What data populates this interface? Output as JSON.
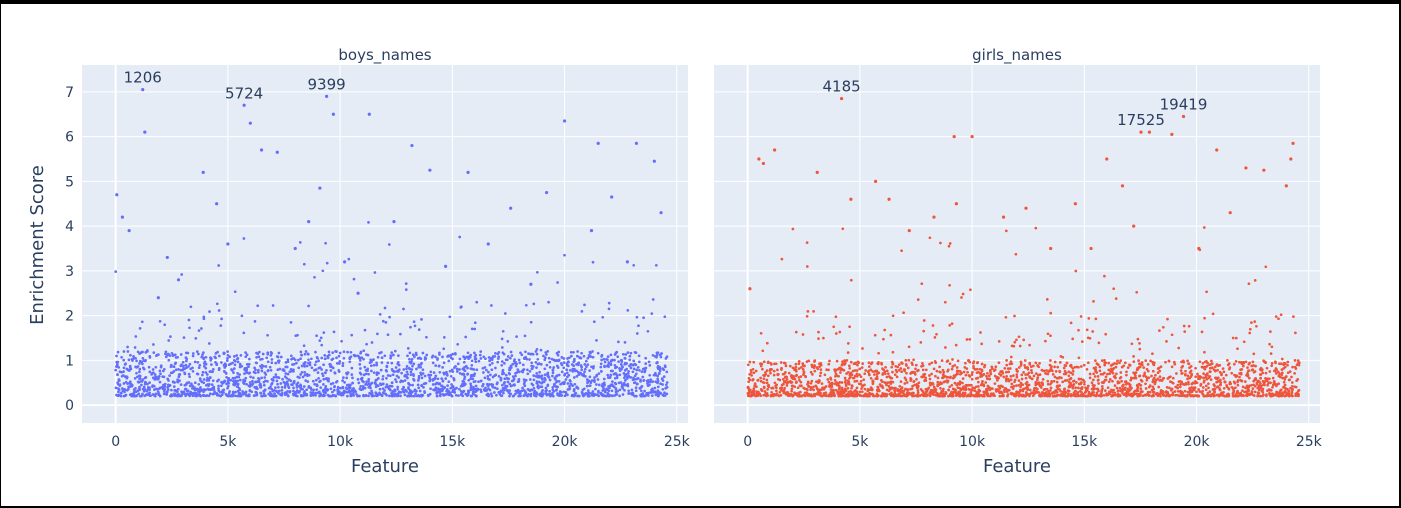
{
  "chart_data": [
    {
      "type": "scatter",
      "title": "boys_names",
      "xlabel": "Feature",
      "ylabel": "Enrichment Score",
      "xlim": [
        -1500,
        25500
      ],
      "ylim": [
        -0.4,
        7.6
      ],
      "xticks": [
        0,
        5000,
        10000,
        15000,
        20000,
        25000
      ],
      "xtick_labels": [
        "0",
        "5k",
        "10k",
        "15k",
        "20k",
        "25k"
      ],
      "yticks": [
        0,
        1,
        2,
        3,
        4,
        5,
        6,
        7
      ],
      "ytick_labels": [
        "0",
        "1",
        "2",
        "3",
        "4",
        "5",
        "6",
        "7"
      ],
      "color": "#636efa",
      "n_features": 24576,
      "series": [
        {
          "x": [
            50,
            300,
            600,
            1206,
            1300,
            1900,
            2300,
            2800,
            3900,
            4500,
            5000,
            5724,
            6000,
            6500,
            7200,
            8000,
            8600,
            9100,
            9399,
            9700,
            10200,
            10800,
            11300,
            12400,
            13200,
            14000,
            14700,
            15700,
            16600,
            17600,
            18500,
            19200,
            20000,
            21200,
            21500,
            22100,
            22800,
            23200,
            24000,
            24300
          ],
          "y": [
            4.7,
            4.2,
            3.9,
            7.05,
            6.1,
            2.4,
            3.3,
            2.8,
            5.2,
            4.5,
            3.6,
            6.7,
            6.3,
            5.7,
            5.65,
            3.5,
            4.1,
            4.85,
            6.9,
            6.5,
            3.2,
            2.5,
            6.5,
            4.1,
            5.8,
            5.25,
            3.1,
            5.2,
            3.6,
            4.4,
            2.7,
            4.75,
            6.35,
            3.9,
            5.85,
            4.65,
            3.2,
            5.85,
            5.45,
            4.3
          ]
        }
      ],
      "annotations": [
        {
          "x": 1206,
          "y": 7.05,
          "text": "1206"
        },
        {
          "x": 5724,
          "y": 6.7,
          "text": "5724"
        },
        {
          "x": 9399,
          "y": 6.9,
          "text": "9399"
        }
      ]
    },
    {
      "type": "scatter",
      "title": "girls_names",
      "xlabel": "Feature",
      "xlim": [
        -1500,
        25500
      ],
      "ylim": [
        -0.4,
        7.6
      ],
      "xticks": [
        0,
        5000,
        10000,
        15000,
        20000,
        25000
      ],
      "xtick_labels": [
        "0",
        "5k",
        "10k",
        "15k",
        "20k",
        "25k"
      ],
      "color": "#ef553b",
      "n_features": 24576,
      "series": [
        {
          "x": [
            100,
            500,
            700,
            1200,
            3100,
            4185,
            4600,
            5700,
            6300,
            7200,
            8300,
            9200,
            9300,
            10000,
            11400,
            12400,
            13500,
            14600,
            15300,
            16000,
            16700,
            17200,
            17525,
            17900,
            18900,
            19419,
            20100,
            20900,
            21500,
            22200,
            23000,
            24000,
            24200,
            24300
          ],
          "y": [
            2.6,
            5.5,
            5.4,
            5.7,
            5.2,
            6.85,
            4.6,
            5.0,
            4.6,
            3.9,
            4.2,
            6.0,
            4.5,
            6.0,
            4.2,
            4.4,
            3.5,
            4.5,
            3.5,
            5.5,
            4.9,
            4.0,
            6.1,
            6.1,
            6.05,
            6.45,
            3.5,
            5.7,
            4.3,
            5.3,
            5.25,
            4.9,
            5.5,
            5.85
          ]
        }
      ],
      "annotations": [
        {
          "x": 4185,
          "y": 6.85,
          "text": "4185"
        },
        {
          "x": 17525,
          "y": 6.1,
          "text": "17525"
        },
        {
          "x": 19419,
          "y": 6.45,
          "text": "19419"
        }
      ]
    }
  ]
}
